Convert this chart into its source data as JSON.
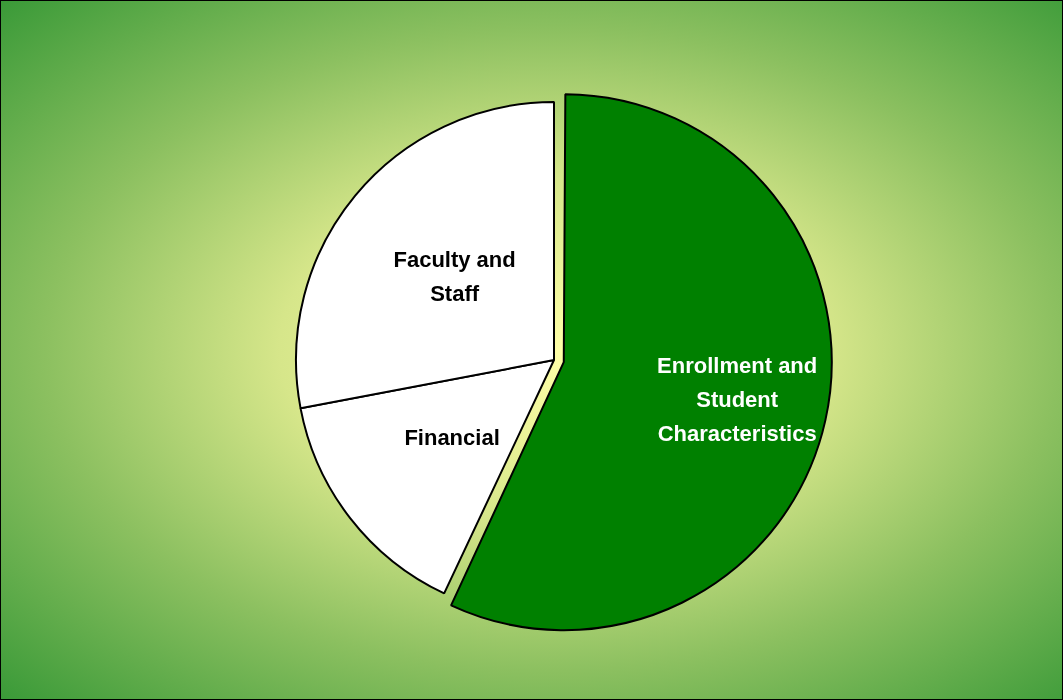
{
  "chart_data": {
    "type": "pie",
    "categories": [
      "Enrollment and Student Characteristics",
      "Financial",
      "Faculty and Staff"
    ],
    "values": [
      57,
      15,
      28
    ],
    "colors": [
      "#008000",
      "#ffffff",
      "#ffffff"
    ]
  }
}
